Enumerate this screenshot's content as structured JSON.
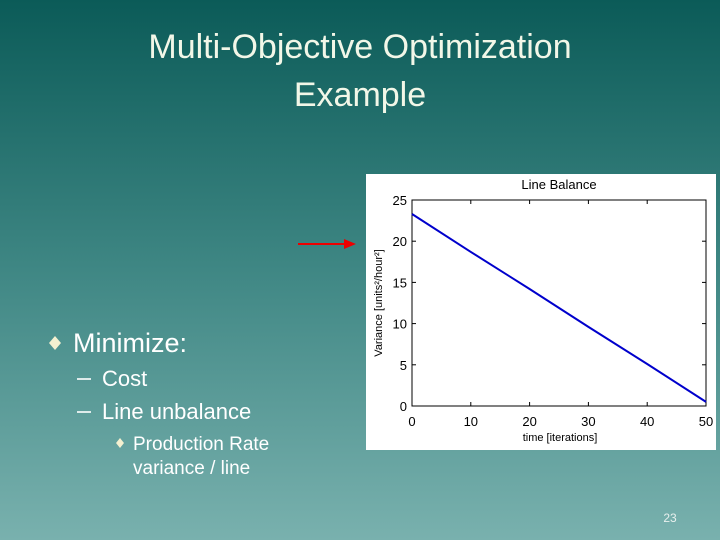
{
  "slide": {
    "title_lines": [
      "Multi-Objective Optimization",
      "Example"
    ],
    "bullet": "Minimize:",
    "sub_bullets": [
      "Cost",
      "Line unbalance"
    ],
    "sub_sub_bullet_lines": [
      "Production Rate",
      "variance / line"
    ],
    "page_number": "23"
  },
  "chart_data": {
    "type": "line",
    "title": "Line Balance",
    "x_label": "time [iterations]",
    "y_label": "Variance [units²/hour²]",
    "x": [
      0,
      10,
      20,
      30,
      40,
      50
    ],
    "values": [
      23.3,
      18.7,
      14.2,
      9.6,
      5.1,
      0.5
    ],
    "color": "#0000cc",
    "xlim": [
      0,
      50
    ],
    "xticks": [
      0,
      10,
      20,
      30,
      40,
      50
    ],
    "ylim": [
      0,
      25
    ],
    "yticks": [
      0,
      5,
      10,
      15,
      20,
      25
    ],
    "grid": false
  }
}
